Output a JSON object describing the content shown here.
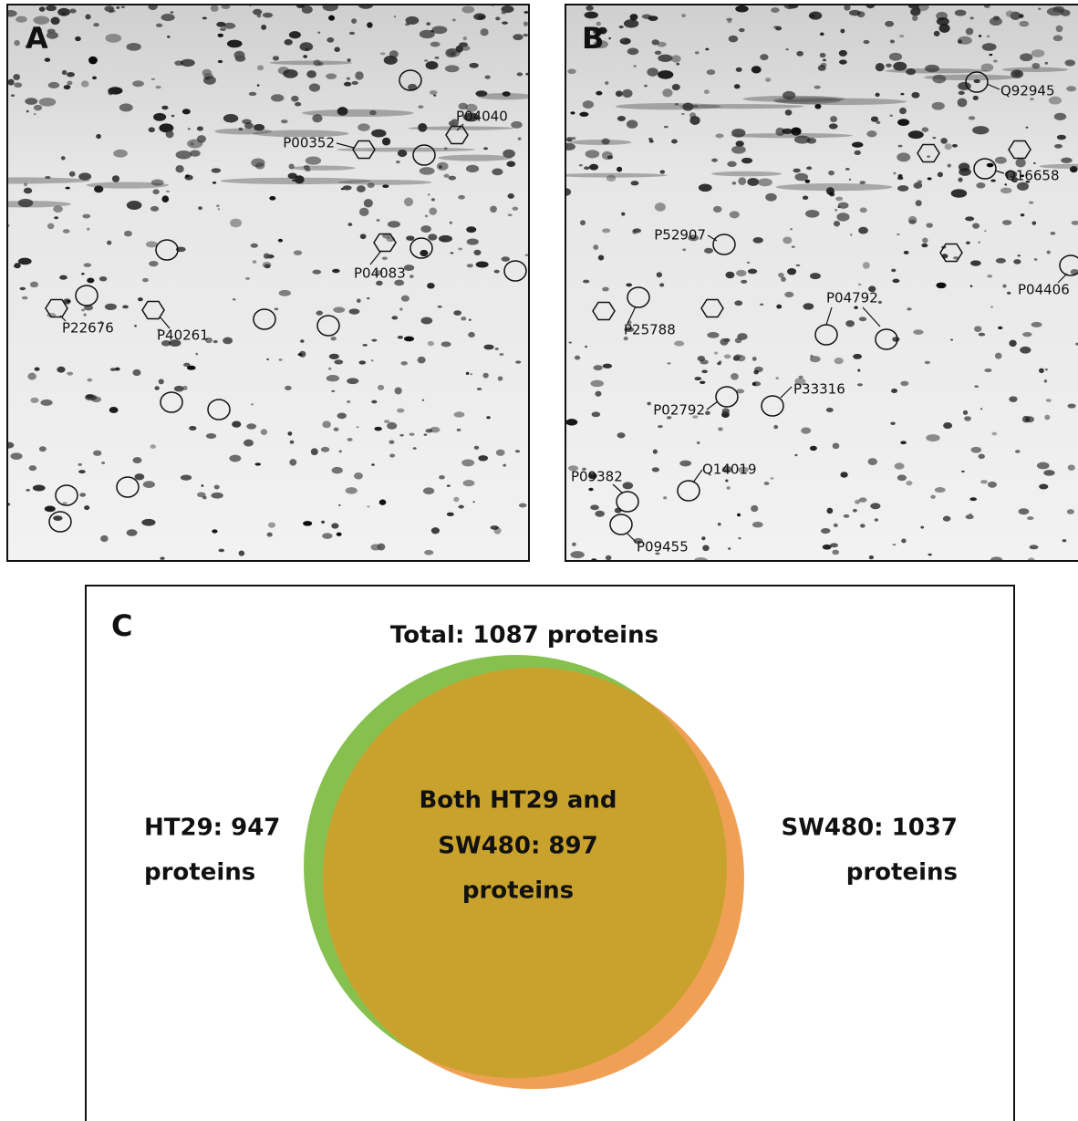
{
  "panel_a": {
    "letter": "A",
    "labels": [
      "P04040",
      "P00352",
      "P04083",
      "P22676",
      "P40261"
    ]
  },
  "panel_b": {
    "letter": "B",
    "labels": [
      "Q92945",
      "Q16658",
      "P52907",
      "P04406",
      "P04792",
      "P25788",
      "P33316",
      "P02792",
      "Q14019",
      "P09382",
      "P09455"
    ]
  },
  "panel_c": {
    "letter": "C",
    "title": "Total: 1087 proteins",
    "left": [
      "HT29: 947",
      "proteins"
    ],
    "right": [
      "SW480: 1037",
      "proteins"
    ],
    "center": [
      "Both HT29 and",
      "SW480: 897",
      "proteins"
    ]
  }
}
